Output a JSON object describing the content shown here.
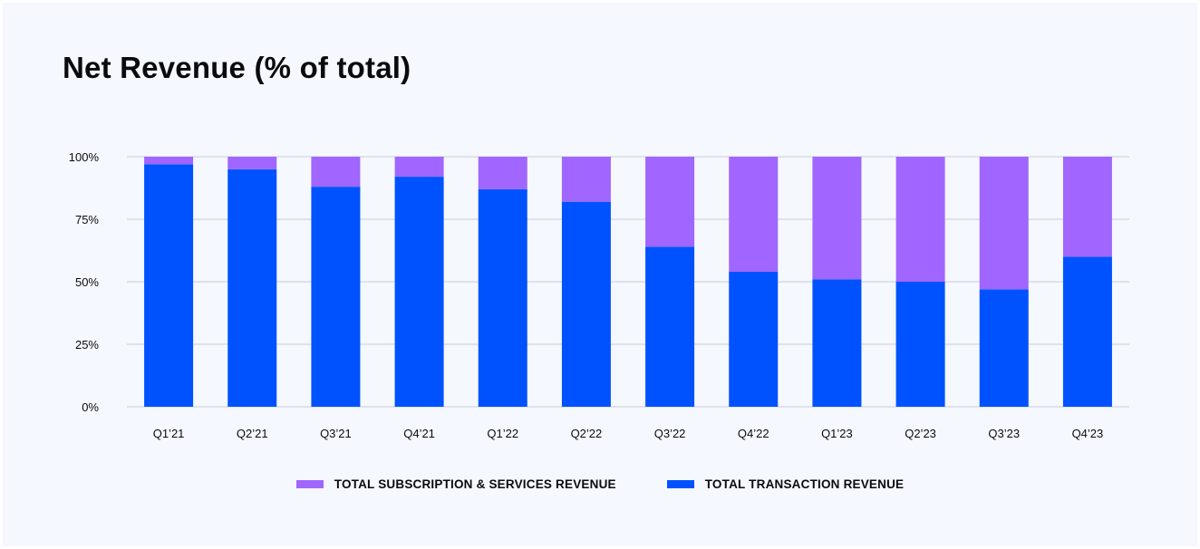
{
  "chart_data": {
    "type": "bar",
    "stacked": true,
    "title": "Net Revenue (% of total)",
    "categories": [
      "Q1’21",
      "Q2’21",
      "Q3’21",
      "Q4’21",
      "Q1’22",
      "Q2’22",
      "Q3’22",
      "Q4’22",
      "Q1’23",
      "Q2’23",
      "Q3’23",
      "Q4’23"
    ],
    "series": [
      {
        "name": "TOTAL TRANSACTION REVENUE",
        "color": "#0052ff",
        "values": [
          97,
          95,
          88,
          92,
          87,
          82,
          64,
          54,
          51,
          50,
          47,
          60
        ]
      },
      {
        "name": "TOTAL SUBSCRIPTION & SERVICES REVENUE",
        "color": "#a066ff",
        "values": [
          3,
          5,
          12,
          8,
          13,
          18,
          36,
          46,
          49,
          50,
          53,
          40
        ]
      }
    ],
    "legend_order": [
      1,
      0
    ],
    "ylim": [
      0,
      100
    ],
    "yticks": [
      0,
      25,
      50,
      75,
      100
    ],
    "ytick_labels": [
      "0%",
      "25%",
      "50%",
      "75%",
      "100%"
    ],
    "grid": true,
    "legend_position": "bottom"
  }
}
